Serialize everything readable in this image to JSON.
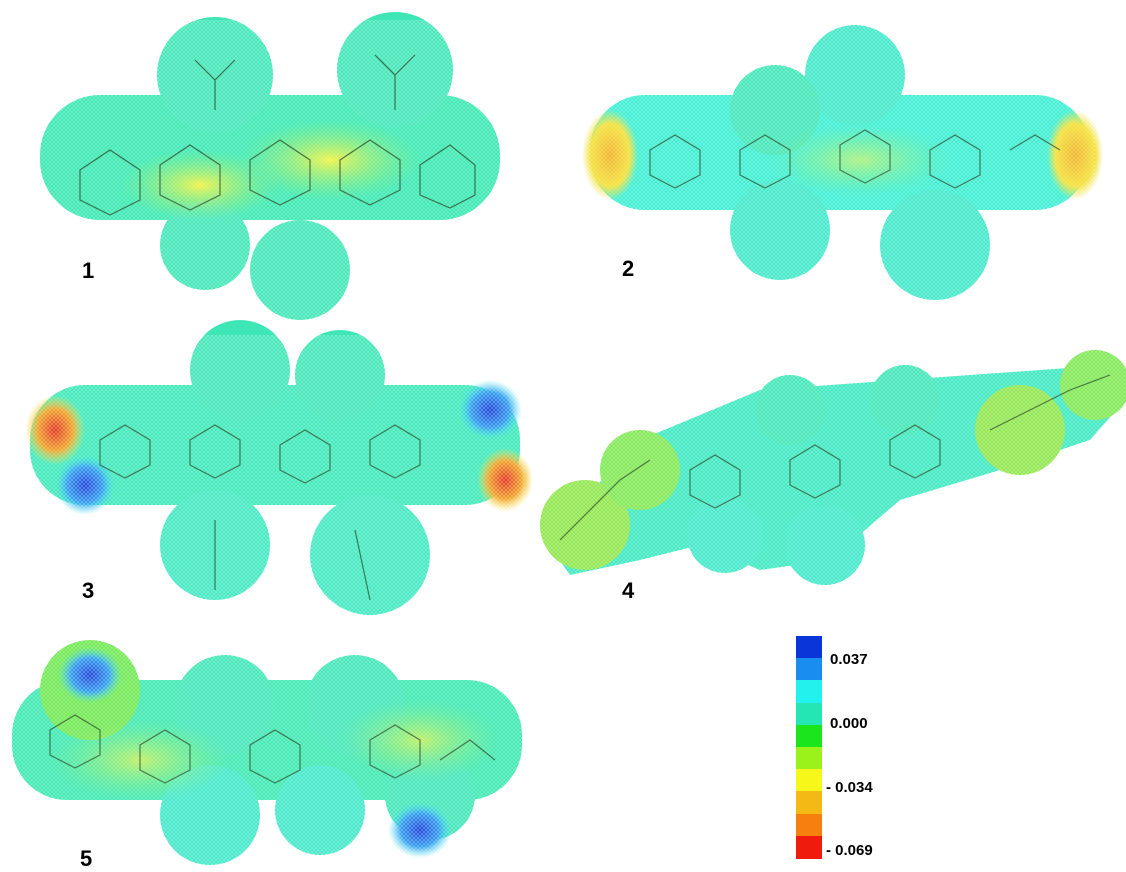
{
  "panels": [
    {
      "label": "1"
    },
    {
      "label": "2"
    },
    {
      "label": "3"
    },
    {
      "label": "4"
    },
    {
      "label": "5"
    }
  ],
  "color_scale": {
    "labels": {
      "top": "0.037",
      "mid": "0.000",
      "low": "- 0.034",
      "bottom": "- 0.069"
    },
    "colors": [
      "#0a35d8",
      "#1a8ef0",
      "#22f2ee",
      "#24e6b4",
      "#1be51b",
      "#9af21a",
      "#f7f71a",
      "#f5b916",
      "#f5800e",
      "#ef1c0e"
    ]
  }
}
